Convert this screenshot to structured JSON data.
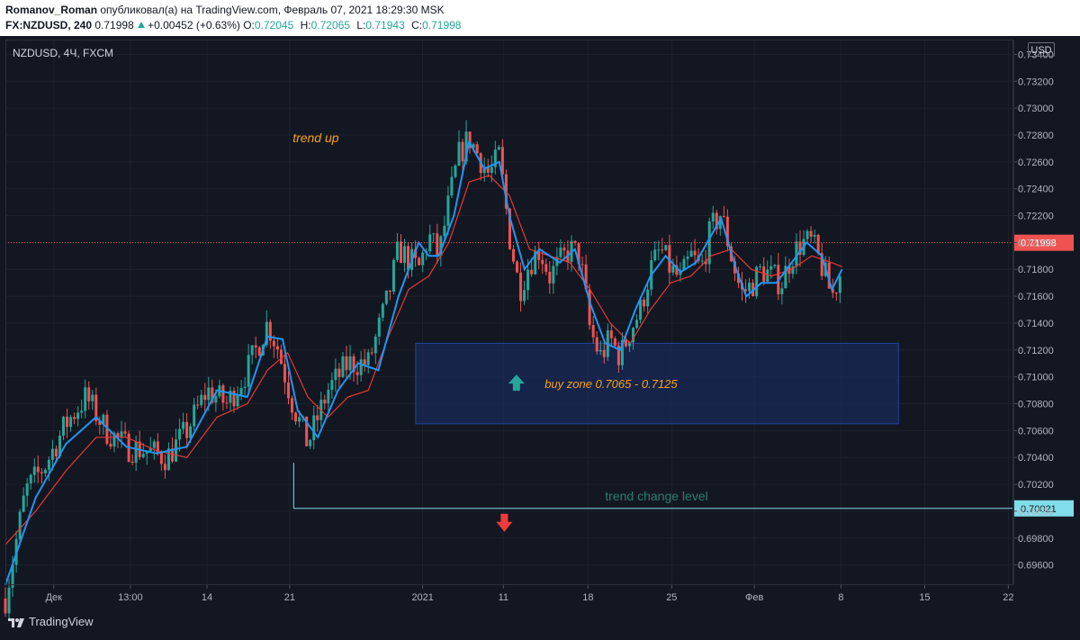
{
  "header": {
    "author": "Romanov_Roman",
    "published_text": "опубликовал(а) на TradingView.com, Февраль 07, 2021 18:29:30 MSK",
    "symbol_full": "FX:NZDUSD, 240",
    "last_price": "0.71998",
    "change": "+0.00452 (+0.63%)",
    "o_label": "O:",
    "o_value": "0.72045",
    "h_label": "H:",
    "h_value": "0.72065",
    "l_label": "L:",
    "l_value": "0.71943",
    "c_label": "C:",
    "c_value": "0.71998"
  },
  "legend": {
    "symbol": "NZDUSD, 4Ч, FXCM"
  },
  "currency": "USD",
  "footer": {
    "brand": "TradingView"
  },
  "colors": {
    "bull": "#26a69a",
    "bear": "#ef5350",
    "ma_fast": "#2196f3",
    "ma_slow": "#e53935",
    "zone_fill": "#1a2a57",
    "zone_border": "#2962ff",
    "annotation": "#f7a21b",
    "level": "#80deea",
    "price_tag": "#ef5350"
  },
  "chart_data": {
    "type": "candlestick",
    "y_ticks": [
      "0.73400",
      "0.73200",
      "0.73000",
      "0.72800",
      "0.72600",
      "0.72400",
      "0.72200",
      "0.72000",
      "0.71800",
      "0.71600",
      "0.71400",
      "0.71200",
      "0.71000",
      "0.70800",
      "0.70600",
      "0.70400",
      "0.70200",
      "0.70000",
      "0.69800",
      "0.69600"
    ],
    "y_range": [
      0.6945,
      0.7351
    ],
    "x_ticks": [
      {
        "label": "Дек",
        "pos": 0.048
      },
      {
        "label": "13:00",
        "pos": 0.124
      },
      {
        "label": "14",
        "pos": 0.2
      },
      {
        "label": "21",
        "pos": 0.282
      },
      {
        "label": "2021",
        "pos": 0.414
      },
      {
        "label": "11",
        "pos": 0.494
      },
      {
        "label": "18",
        "pos": 0.578
      },
      {
        "label": "25",
        "pos": 0.661
      },
      {
        "label": "Фев",
        "pos": 0.743
      },
      {
        "label": "8",
        "pos": 0.829
      },
      {
        "label": "15",
        "pos": 0.912
      },
      {
        "label": "22",
        "pos": 0.995
      }
    ],
    "close_path": [
      [
        0.0,
        0.6935
      ],
      [
        0.02,
        0.7015
      ],
      [
        0.04,
        0.7035
      ],
      [
        0.06,
        0.7065
      ],
      [
        0.08,
        0.7085
      ],
      [
        0.1,
        0.706
      ],
      [
        0.12,
        0.7048
      ],
      [
        0.14,
        0.7045
      ],
      [
        0.16,
        0.704
      ],
      [
        0.18,
        0.706
      ],
      [
        0.2,
        0.709
      ],
      [
        0.22,
        0.708
      ],
      [
        0.24,
        0.7105
      ],
      [
        0.26,
        0.714
      ],
      [
        0.27,
        0.7122
      ],
      [
        0.285,
        0.708
      ],
      [
        0.3,
        0.705
      ],
      [
        0.32,
        0.709
      ],
      [
        0.34,
        0.711
      ],
      [
        0.36,
        0.711
      ],
      [
        0.38,
        0.716
      ],
      [
        0.39,
        0.7195
      ],
      [
        0.41,
        0.718
      ],
      [
        0.42,
        0.7205
      ],
      [
        0.43,
        0.719
      ],
      [
        0.44,
        0.723
      ],
      [
        0.45,
        0.7265
      ],
      [
        0.46,
        0.7278
      ],
      [
        0.48,
        0.725
      ],
      [
        0.49,
        0.7265
      ],
      [
        0.5,
        0.7205
      ],
      [
        0.51,
        0.7165
      ],
      [
        0.52,
        0.7185
      ],
      [
        0.53,
        0.7195
      ],
      [
        0.54,
        0.7175
      ],
      [
        0.56,
        0.7195
      ],
      [
        0.57,
        0.719
      ],
      [
        0.58,
        0.7135
      ],
      [
        0.59,
        0.7115
      ],
      [
        0.6,
        0.7128
      ],
      [
        0.61,
        0.7115
      ],
      [
        0.62,
        0.7135
      ],
      [
        0.63,
        0.715
      ],
      [
        0.64,
        0.718
      ],
      [
        0.65,
        0.7195
      ],
      [
        0.66,
        0.718
      ],
      [
        0.67,
        0.7172
      ],
      [
        0.68,
        0.719
      ],
      [
        0.69,
        0.718
      ],
      [
        0.7,
        0.721
      ],
      [
        0.71,
        0.7222
      ],
      [
        0.72,
        0.719
      ],
      [
        0.73,
        0.7162
      ],
      [
        0.74,
        0.7168
      ],
      [
        0.75,
        0.718
      ],
      [
        0.76,
        0.7175
      ],
      [
        0.77,
        0.717
      ],
      [
        0.78,
        0.719
      ],
      [
        0.79,
        0.72
      ],
      [
        0.8,
        0.72
      ],
      [
        0.81,
        0.7182
      ],
      [
        0.82,
        0.716
      ],
      [
        0.83,
        0.718
      ]
    ],
    "ma_fast_path": [
      [
        0.0,
        0.6945
      ],
      [
        0.03,
        0.701
      ],
      [
        0.06,
        0.705
      ],
      [
        0.09,
        0.707
      ],
      [
        0.12,
        0.7048
      ],
      [
        0.15,
        0.7043
      ],
      [
        0.18,
        0.7048
      ],
      [
        0.21,
        0.709
      ],
      [
        0.24,
        0.7085
      ],
      [
        0.26,
        0.713
      ],
      [
        0.275,
        0.7128
      ],
      [
        0.29,
        0.7075
      ],
      [
        0.31,
        0.7055
      ],
      [
        0.33,
        0.709
      ],
      [
        0.35,
        0.711
      ],
      [
        0.37,
        0.7105
      ],
      [
        0.39,
        0.716
      ],
      [
        0.41,
        0.72
      ],
      [
        0.42,
        0.719
      ],
      [
        0.43,
        0.719
      ],
      [
        0.445,
        0.722
      ],
      [
        0.46,
        0.7275
      ],
      [
        0.475,
        0.7255
      ],
      [
        0.49,
        0.726
      ],
      [
        0.5,
        0.722
      ],
      [
        0.515,
        0.718
      ],
      [
        0.53,
        0.7195
      ],
      [
        0.55,
        0.7185
      ],
      [
        0.565,
        0.7195
      ],
      [
        0.58,
        0.7155
      ],
      [
        0.595,
        0.7125
      ],
      [
        0.61,
        0.712
      ],
      [
        0.625,
        0.715
      ],
      [
        0.64,
        0.7175
      ],
      [
        0.655,
        0.719
      ],
      [
        0.67,
        0.7178
      ],
      [
        0.685,
        0.7185
      ],
      [
        0.7,
        0.7205
      ],
      [
        0.71,
        0.7218
      ],
      [
        0.725,
        0.718
      ],
      [
        0.735,
        0.716
      ],
      [
        0.75,
        0.717
      ],
      [
        0.765,
        0.717
      ],
      [
        0.78,
        0.7185
      ],
      [
        0.795,
        0.72
      ],
      [
        0.81,
        0.719
      ],
      [
        0.82,
        0.7165
      ],
      [
        0.83,
        0.718
      ]
    ],
    "ma_slow_path": [
      [
        0.0,
        0.6975
      ],
      [
        0.03,
        0.7
      ],
      [
        0.06,
        0.703
      ],
      [
        0.09,
        0.7055
      ],
      [
        0.12,
        0.7055
      ],
      [
        0.15,
        0.7045
      ],
      [
        0.18,
        0.704
      ],
      [
        0.21,
        0.707
      ],
      [
        0.24,
        0.708
      ],
      [
        0.26,
        0.7105
      ],
      [
        0.28,
        0.7118
      ],
      [
        0.3,
        0.7085
      ],
      [
        0.32,
        0.707
      ],
      [
        0.34,
        0.7085
      ],
      [
        0.36,
        0.709
      ],
      [
        0.38,
        0.713
      ],
      [
        0.4,
        0.7165
      ],
      [
        0.42,
        0.7175
      ],
      [
        0.44,
        0.72
      ],
      [
        0.46,
        0.7245
      ],
      [
        0.48,
        0.725
      ],
      [
        0.5,
        0.7235
      ],
      [
        0.52,
        0.7195
      ],
      [
        0.54,
        0.719
      ],
      [
        0.56,
        0.7185
      ],
      [
        0.58,
        0.7165
      ],
      [
        0.6,
        0.714
      ],
      [
        0.62,
        0.7125
      ],
      [
        0.64,
        0.715
      ],
      [
        0.66,
        0.717
      ],
      [
        0.68,
        0.7175
      ],
      [
        0.7,
        0.719
      ],
      [
        0.72,
        0.7195
      ],
      [
        0.74,
        0.718
      ],
      [
        0.76,
        0.7175
      ],
      [
        0.78,
        0.718
      ],
      [
        0.8,
        0.719
      ],
      [
        0.82,
        0.7185
      ],
      [
        0.83,
        0.7182
      ]
    ],
    "last_price": 0.71998,
    "last_price_label": "0.71998",
    "trend_change_level": 0.70021,
    "trend_change_label": "0.70021",
    "buy_zone": {
      "low": 0.7065,
      "high": 0.7125,
      "x_start": 0.407,
      "x_end": 0.886
    },
    "annotations": {
      "trend_up": "trend up",
      "buy_zone": "buy zone 0.7065 - 0.7125",
      "trend_change": "trend change level"
    }
  }
}
